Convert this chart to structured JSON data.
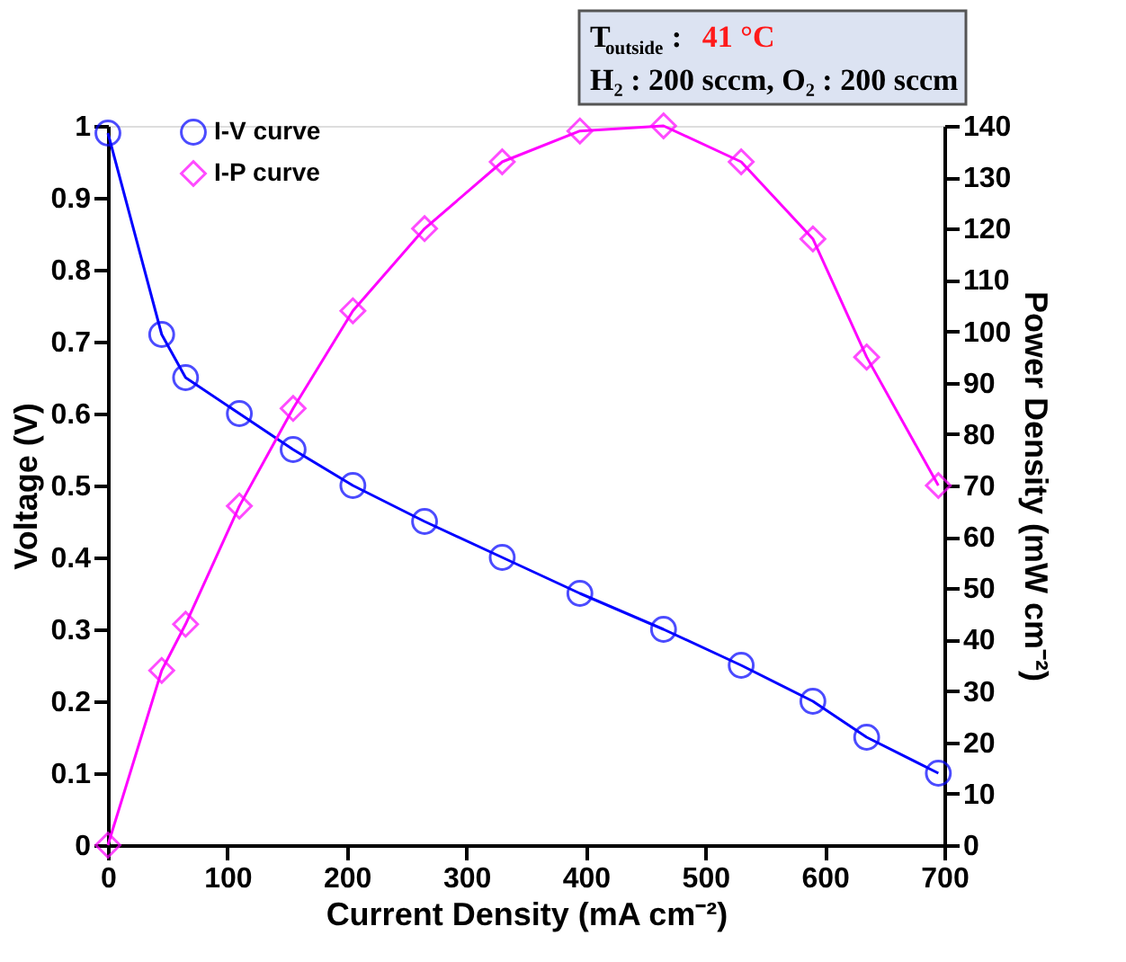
{
  "chart_data": {
    "type": "line",
    "xlabel": "Current Density (mA cm⁻²)",
    "ylabel": "Voltage (V)",
    "y2label": "Power Density (mW cm⁻²)",
    "x": [
      0,
      45,
      65,
      110,
      155,
      205,
      265,
      330,
      395,
      465,
      530,
      590,
      635,
      695
    ],
    "series": [
      {
        "name": "I-V curve",
        "color": "#0000ff",
        "marker": "circle",
        "values": [
          0.99,
          0.71,
          0.65,
          0.6,
          0.55,
          0.5,
          0.45,
          0.4,
          0.35,
          0.3,
          0.25,
          0.2,
          0.15,
          0.1
        ]
      },
      {
        "name": "I-P curve",
        "color": "#ff00ff",
        "marker": "diamond",
        "axis": "y2",
        "values": [
          0,
          34,
          43,
          66,
          85,
          104,
          120,
          133,
          139,
          140,
          133,
          118,
          95,
          70
        ]
      }
    ],
    "xlim": [
      0,
      700
    ],
    "xticks": [
      0,
      100,
      200,
      300,
      400,
      500,
      600,
      700
    ],
    "ylim": [
      0,
      1
    ],
    "yticks": [
      0,
      0.1,
      0.2,
      0.3,
      0.4,
      0.5,
      0.6,
      0.7,
      0.8,
      0.9,
      1
    ],
    "y2lim": [
      0,
      140
    ],
    "y2ticks": [
      0,
      10,
      20,
      30,
      40,
      50,
      60,
      70,
      80,
      90,
      100,
      110,
      120,
      130,
      140
    ],
    "annotations": [
      "T$_{outside}$ : 41 °C",
      "H₂ : 200 sccm, O₂ : 200 sccm"
    ],
    "legend": "top left",
    "grid": false,
    "line_style": "solid"
  }
}
